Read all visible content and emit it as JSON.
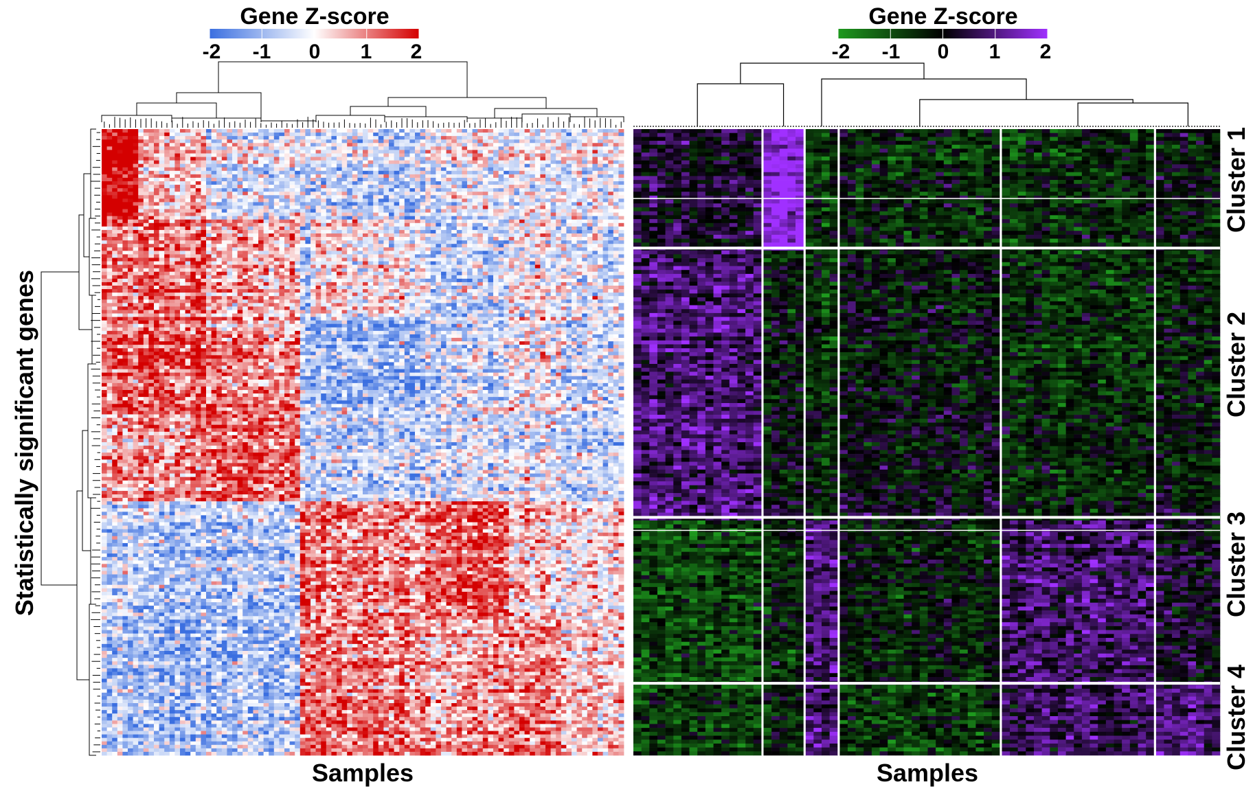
{
  "chart_data": [
    {
      "type": "heatmap",
      "panel": "left",
      "colorbar": {
        "title": "Gene Z-score",
        "ticks": [
          "-2",
          "-1",
          "0",
          "1",
          "2"
        ],
        "range": [
          -2,
          2
        ],
        "low_color": "#3b6fe0",
        "mid_color": "#ffffff",
        "high_color": "#d40000"
      },
      "xlabel": "Samples",
      "ylabel": "Statistically significant genes",
      "dendrogram_columns": true,
      "dendrogram_rows": true,
      "n_columns": 100,
      "row_block_patterns": [
        [
          2.2,
          0.5,
          -0.3,
          -0.3,
          -0.5,
          -0.2,
          -0.2,
          -0.2
        ],
        [
          1.0,
          1.2,
          0.7,
          -0.6,
          0.2,
          -0.5,
          0.1,
          -0.3
        ],
        [
          1.2,
          1.4,
          1.0,
          -0.8,
          -1.0,
          -0.4,
          0.0,
          -0.5
        ],
        [
          0.8,
          1.0,
          1.3,
          -0.7,
          -0.5,
          -0.3,
          -0.2,
          -0.6
        ],
        [
          -0.6,
          -0.8,
          -0.7,
          1.5,
          1.0,
          1.4,
          0.5,
          0.2
        ],
        [
          -0.8,
          -1.0,
          -0.8,
          1.2,
          1.1,
          0.8,
          1.0,
          0.4
        ]
      ]
    },
    {
      "type": "heatmap",
      "panel": "right",
      "colorbar": {
        "title": "Gene Z-score",
        "ticks": [
          "-2",
          "-1",
          "0",
          "1",
          "2"
        ],
        "range": [
          -2,
          2
        ],
        "low_color": "#1e9a1e",
        "mid_color": "#000000",
        "high_color": "#a030ff"
      },
      "xlabel": "Samples",
      "column_groups": 6,
      "group_widths": [
        16,
        5,
        4,
        20,
        19,
        8
      ],
      "clusters": [
        "Cluster 1",
        "Cluster 2",
        "Cluster 3",
        "Cluster 4"
      ],
      "group_means": [
        [
          0.3,
          1.9,
          -0.6,
          -0.4,
          -0.5,
          -0.2
        ],
        [
          0.9,
          -0.2,
          -0.5,
          -0.1,
          -0.5,
          -0.3
        ],
        [
          -0.8,
          -0.4,
          0.9,
          -0.2,
          0.8,
          0.2
        ],
        [
          -0.7,
          -0.3,
          1.0,
          -0.6,
          0.7,
          1.0
        ]
      ]
    }
  ]
}
